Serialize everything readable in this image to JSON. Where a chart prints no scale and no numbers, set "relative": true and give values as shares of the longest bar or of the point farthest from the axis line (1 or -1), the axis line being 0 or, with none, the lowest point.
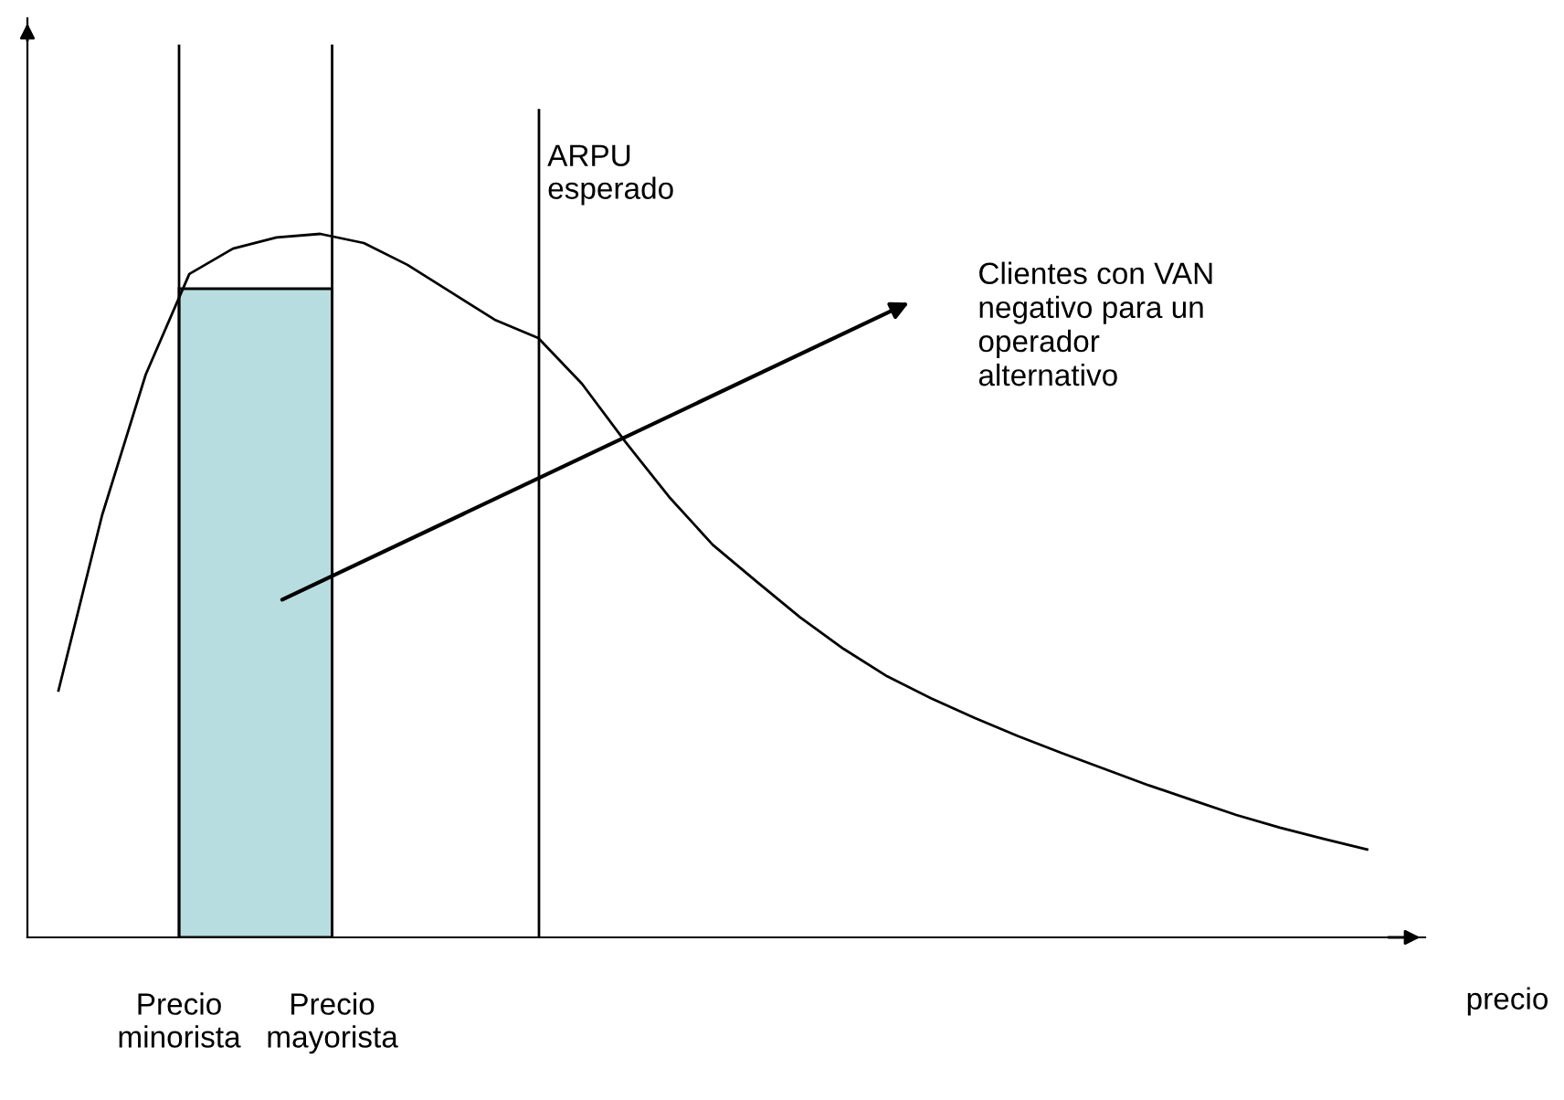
{
  "chart_data": {
    "type": "line",
    "relative": true,
    "xlabel": "precio",
    "categories": [
      null,
      null,
      null,
      null,
      null,
      null,
      null,
      null,
      null,
      null,
      null,
      null,
      null,
      null,
      null,
      null,
      null,
      null,
      null,
      null,
      null,
      null,
      null,
      null,
      null,
      null,
      null,
      null,
      null,
      null,
      null
    ],
    "series": [
      {
        "color": "#000000",
        "values": [
          0.351,
          0.6,
          0.8,
          0.943,
          0.979,
          0.995,
          1.0,
          0.987,
          0.956,
          0.917,
          0.878,
          0.852,
          0.787,
          0.704,
          0.626,
          0.558,
          0.506,
          0.455,
          0.41,
          0.371,
          0.34,
          0.312,
          0.286,
          0.262,
          0.239,
          0.216,
          0.195,
          0.174,
          0.156,
          0.14,
          0.125
        ]
      }
    ],
    "annotations": [
      "ARPU\nesperado",
      "Clientes con VAN\nnegativo para un\noperador\nalternativo",
      "Precio\nminorista",
      "Precio\nmayorista"
    ],
    "legend": false,
    "marker": "none",
    "line_style": "solid"
  }
}
